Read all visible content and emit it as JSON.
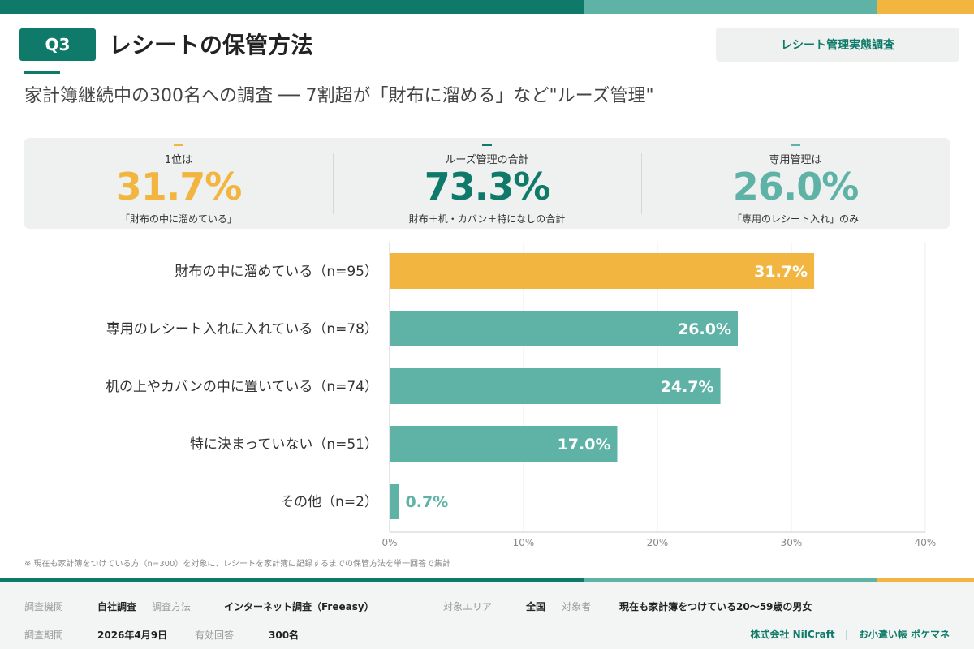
{
  "header": {
    "badge": "Q3",
    "title": "レシートの保管方法",
    "tag": "レシート管理実態調査",
    "subtitle": "家計簿継続中の300名への調査 ── 7割超が「財布に溜める」など\"ルーズ管理\""
  },
  "kpis": [
    {
      "label": "1位は",
      "value": "31.7%",
      "caption": "「財布の中に溜めている」",
      "color": "#f2b53f"
    },
    {
      "label": "ルーズ管理の合計",
      "value": "73.3%",
      "caption": "財布＋机・カバン＋特になしの合計",
      "color": "#0f7a69"
    },
    {
      "label": "専用管理は",
      "value": "26.0%",
      "caption": "「専用のレシート入れ」のみ",
      "color": "#5fb3a6"
    }
  ],
  "chart_data": {
    "type": "bar",
    "orientation": "horizontal",
    "categories": [
      "財布の中に溜めている（n=95）",
      "専用のレシート入れに入れている（n=78）",
      "机の上やカバンの中に置いている（n=74）",
      "特に決まっていない（n=51）",
      "その他（n=2）"
    ],
    "values": [
      31.7,
      26.0,
      24.7,
      17.0,
      0.7
    ],
    "data_labels": [
      "31.7%",
      "26.0%",
      "24.7%",
      "17.0%",
      "0.7%"
    ],
    "xlim": [
      0,
      40
    ],
    "xticks": [
      "0%",
      "10%",
      "20%",
      "30%",
      "40%"
    ],
    "grid": true,
    "colors": [
      "#f2b53f",
      "#5fb3a6",
      "#5fb3a6",
      "#5fb3a6",
      "#5fb3a6"
    ]
  },
  "note": "※ 現在も家計簿をつけている方（n=300）を対象に、レシートを家計簿に記録するまでの保管方法を単一回答で集計",
  "footer": {
    "org_label": "調査機関",
    "org": "自社調査",
    "method_label": "調査方法",
    "method": "インターネット調査（Freeasy）",
    "area_label": "対象エリア",
    "area": "全国",
    "target_label": "対象者",
    "target": "現在も家計簿をつけている20〜59歳の男女",
    "period_label": "調査期間",
    "period": "2026年4月9日",
    "resp_label": "有効回答",
    "resp": "300名",
    "company": "株式会社 NilCraft",
    "sep": "|",
    "app": "お小遣い帳 ポケマネ"
  },
  "colors": {
    "dark": "#0f7a69",
    "teal": "#5fb3a6",
    "yellow": "#f2b53f"
  }
}
